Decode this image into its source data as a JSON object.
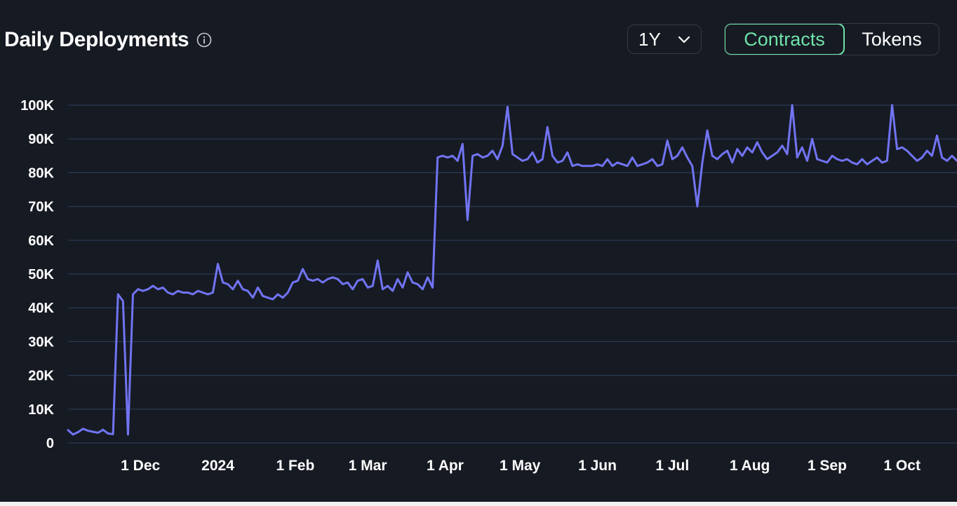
{
  "header": {
    "title": "Daily Deployments",
    "info_icon": "info-circle-icon"
  },
  "controls": {
    "range": {
      "selected": "1Y",
      "icon": "chevron-down-icon"
    },
    "toggle": [
      {
        "label": "Contracts",
        "active": true
      },
      {
        "label": "Tokens",
        "active": false
      }
    ]
  },
  "colors": {
    "background": "#161a23",
    "line": "#7174f2",
    "grid": "#2a3a55",
    "accent": "#6fe3a8"
  },
  "chart_data": {
    "type": "line",
    "title": "Daily Deployments",
    "xlabel": "",
    "ylabel": "",
    "grid": true,
    "ylim": [
      0,
      100000
    ],
    "yticks": [
      0,
      10000,
      20000,
      30000,
      40000,
      50000,
      60000,
      70000,
      80000,
      90000,
      100000
    ],
    "ytick_labels": [
      "0",
      "10K",
      "20K",
      "30K",
      "40K",
      "50K",
      "60K",
      "70K",
      "80K",
      "90K",
      "100K"
    ],
    "xlim": [
      "2023-11-02",
      "2023-10-23"
    ],
    "xticks": [
      {
        "label": "1 Dec",
        "date": "2023-12-01"
      },
      {
        "label": "2024",
        "date": "2024-01-01"
      },
      {
        "label": "1 Feb",
        "date": "2024-02-01"
      },
      {
        "label": "1 Mar",
        "date": "2024-03-01"
      },
      {
        "label": "1 Apr",
        "date": "2024-04-01"
      },
      {
        "label": "1 May",
        "date": "2024-05-01"
      },
      {
        "label": "1 Jun",
        "date": "2024-06-01"
      },
      {
        "label": "1 Jul",
        "date": "2024-07-01"
      },
      {
        "label": "1 Aug",
        "date": "2024-08-01"
      },
      {
        "label": "1 Sep",
        "date": "2024-09-01"
      },
      {
        "label": "1 Oct",
        "date": "2024-10-01"
      }
    ],
    "x": [
      "2023-11-02",
      "2023-11-04",
      "2023-11-06",
      "2023-11-08",
      "2023-11-10",
      "2023-11-12",
      "2023-11-14",
      "2023-11-16",
      "2023-11-18",
      "2023-11-20",
      "2023-11-22",
      "2023-11-24",
      "2023-11-26",
      "2023-11-28",
      "2023-11-30",
      "2023-12-02",
      "2023-12-04",
      "2023-12-06",
      "2023-12-08",
      "2023-12-10",
      "2023-12-12",
      "2023-12-14",
      "2023-12-16",
      "2023-12-18",
      "2023-12-20",
      "2023-12-22",
      "2023-12-24",
      "2023-12-26",
      "2023-12-28",
      "2023-12-30",
      "2024-01-01",
      "2024-01-03",
      "2024-01-05",
      "2024-01-07",
      "2024-01-09",
      "2024-01-11",
      "2024-01-13",
      "2024-01-15",
      "2024-01-17",
      "2024-01-19",
      "2024-01-21",
      "2024-01-23",
      "2024-01-25",
      "2024-01-27",
      "2024-01-29",
      "2024-01-31",
      "2024-02-02",
      "2024-02-04",
      "2024-02-06",
      "2024-02-08",
      "2024-02-10",
      "2024-02-12",
      "2024-02-14",
      "2024-02-16",
      "2024-02-18",
      "2024-02-20",
      "2024-02-22",
      "2024-02-24",
      "2024-02-26",
      "2024-02-28",
      "2024-03-01",
      "2024-03-03",
      "2024-03-05",
      "2024-03-07",
      "2024-03-09",
      "2024-03-11",
      "2024-03-13",
      "2024-03-15",
      "2024-03-17",
      "2024-03-19",
      "2024-03-21",
      "2024-03-23",
      "2024-03-25",
      "2024-03-27",
      "2024-03-29",
      "2024-03-31",
      "2024-04-02",
      "2024-04-04",
      "2024-04-06",
      "2024-04-08",
      "2024-04-10",
      "2024-04-12",
      "2024-04-14",
      "2024-04-16",
      "2024-04-18",
      "2024-04-20",
      "2024-04-22",
      "2024-04-24",
      "2024-04-26",
      "2024-04-28",
      "2024-04-30",
      "2024-05-02",
      "2024-05-04",
      "2024-05-06",
      "2024-05-08",
      "2024-05-10",
      "2024-05-12",
      "2024-05-14",
      "2024-05-16",
      "2024-05-18",
      "2024-05-20",
      "2024-05-22",
      "2024-05-24",
      "2024-05-26",
      "2024-05-28",
      "2024-05-30",
      "2024-06-01",
      "2024-06-03",
      "2024-06-05",
      "2024-06-07",
      "2024-06-09",
      "2024-06-11",
      "2024-06-13",
      "2024-06-15",
      "2024-06-17",
      "2024-06-19",
      "2024-06-21",
      "2024-06-23",
      "2024-06-25",
      "2024-06-27",
      "2024-06-29",
      "2024-07-01",
      "2024-07-03",
      "2024-07-05",
      "2024-07-07",
      "2024-07-09",
      "2024-07-11",
      "2024-07-13",
      "2024-07-15",
      "2024-07-17",
      "2024-07-19",
      "2024-07-21",
      "2024-07-23",
      "2024-07-25",
      "2024-07-27",
      "2024-07-29",
      "2024-07-31",
      "2024-08-02",
      "2024-08-04",
      "2024-08-06",
      "2024-08-08",
      "2024-08-10",
      "2024-08-12",
      "2024-08-14",
      "2024-08-16",
      "2024-08-18",
      "2024-08-20",
      "2024-08-22",
      "2024-08-24",
      "2024-08-26",
      "2024-08-28",
      "2024-08-30",
      "2024-09-01",
      "2024-09-03",
      "2024-09-05",
      "2024-09-07",
      "2024-09-09",
      "2024-09-11",
      "2024-09-13",
      "2024-09-15",
      "2024-09-17",
      "2024-09-19",
      "2024-09-21",
      "2024-09-23",
      "2024-09-25",
      "2024-09-27",
      "2024-09-29",
      "2024-10-01",
      "2024-10-03",
      "2024-10-05",
      "2024-10-07",
      "2024-10-09",
      "2024-10-11",
      "2024-10-13",
      "2024-10-15",
      "2024-10-17",
      "2024-10-19",
      "2024-10-21",
      "2024-10-23"
    ],
    "series": [
      {
        "values": [
          3800,
          2500,
          3200,
          4200,
          3600,
          3300,
          3000,
          3900,
          2800,
          2600,
          44000,
          42000,
          2500,
          44000,
          45500,
          45000,
          45500,
          46500,
          45500,
          46000,
          44500,
          44000,
          45000,
          44500,
          44500,
          44000,
          45000,
          44500,
          44000,
          44500,
          53000,
          47500,
          47000,
          45500,
          48000,
          45500,
          45000,
          43000,
          46000,
          43500,
          43000,
          42500,
          44000,
          43000,
          44500,
          47500,
          48000,
          51500,
          48500,
          48000,
          48500,
          47500,
          48500,
          49000,
          48500,
          47000,
          47500,
          45500,
          48000,
          48500,
          46000,
          46500,
          54000,
          45500,
          46500,
          45000,
          48500,
          46000,
          50500,
          47500,
          47000,
          45500,
          49000,
          46000,
          84500,
          85000,
          84500,
          85000,
          83500,
          88500,
          66000,
          85000,
          85500,
          84500,
          85000,
          86500,
          84000,
          88000,
          99500,
          85500,
          84500,
          83500,
          84000,
          86000,
          83000,
          84000,
          93500,
          85000,
          83000,
          83500,
          86000,
          82000,
          82500,
          82000,
          82000,
          82000,
          82500,
          82000,
          84000,
          82000,
          83000,
          82500,
          82000,
          84500,
          82000,
          82500,
          83000,
          84000,
          82000,
          82500,
          89500,
          84000,
          85000,
          87500,
          84500,
          82000,
          70000,
          83000,
          92500,
          85000,
          84000,
          85500,
          86500,
          83000,
          87000,
          85000,
          87500,
          86000,
          89000,
          86000,
          84000,
          85000,
          86000,
          88000,
          85500,
          100000,
          84500,
          87500,
          83500,
          90000,
          84000,
          83500,
          83000,
          85000,
          84000,
          83500,
          84000,
          83000,
          82500,
          84000,
          82500,
          83500,
          84500,
          83000,
          83500,
          100000,
          87000,
          87500,
          86500,
          85000,
          83500,
          84500,
          86500,
          85000,
          91000,
          84500,
          83500,
          85000,
          83500
        ]
      }
    ]
  }
}
